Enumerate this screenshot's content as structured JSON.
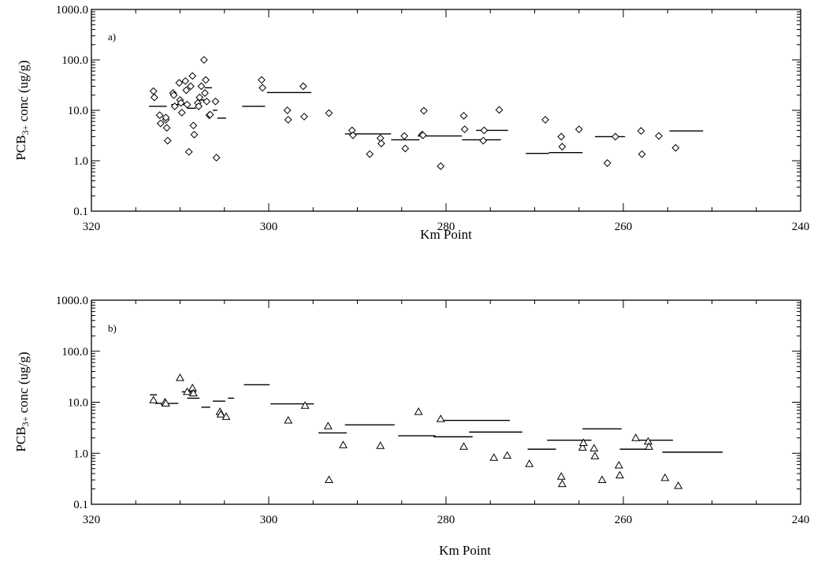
{
  "chart_data": [
    {
      "type": "scatter",
      "panel_label": "a)",
      "xlabel": "Km Point",
      "ylabel_main": "PCB",
      "ylabel_sub": "3+",
      "ylabel_rest": " conc (ug/g)",
      "x_range": [
        320,
        240
      ],
      "y_range": [
        0.1,
        1000
      ],
      "y_scale": "log",
      "marker": "diamond",
      "x_ticks": [
        320,
        300,
        280,
        260,
        240
      ],
      "x_tick_labels": [
        "320",
        "300",
        "280",
        "260",
        "240"
      ],
      "y_ticks": [
        0.1,
        1,
        10,
        100,
        1000
      ],
      "y_tick_labels": [
        "0.1",
        "1.0",
        "10.0",
        "100.0",
        "1000.0"
      ],
      "points": [
        [
          313.0,
          24
        ],
        [
          312.9,
          18
        ],
        [
          312.3,
          8
        ],
        [
          312.2,
          5.5
        ],
        [
          311.6,
          6.5
        ],
        [
          311.5,
          4.5
        ],
        [
          311.4,
          2.5
        ],
        [
          311.6,
          7.2
        ],
        [
          310.8,
          22
        ],
        [
          310.7,
          20
        ],
        [
          310.6,
          12
        ],
        [
          310.1,
          35
        ],
        [
          310.0,
          16
        ],
        [
          309.9,
          14
        ],
        [
          309.8,
          9
        ],
        [
          309.4,
          38
        ],
        [
          309.3,
          25
        ],
        [
          309.2,
          13
        ],
        [
          309.0,
          1.5
        ],
        [
          308.8,
          30
        ],
        [
          308.6,
          48
        ],
        [
          308.5,
          5
        ],
        [
          308.4,
          3.3
        ],
        [
          308.0,
          14
        ],
        [
          307.9,
          12
        ],
        [
          307.8,
          18
        ],
        [
          307.6,
          30
        ],
        [
          307.3,
          100
        ],
        [
          307.1,
          40
        ],
        [
          307.0,
          15
        ],
        [
          307.2,
          22
        ],
        [
          306.7,
          8
        ],
        [
          306.6,
          8.2
        ],
        [
          306.0,
          15
        ],
        [
          305.9,
          1.15
        ],
        [
          300.8,
          40
        ],
        [
          300.7,
          28
        ],
        [
          297.9,
          10
        ],
        [
          297.8,
          6.5
        ],
        [
          296.1,
          30
        ],
        [
          296.0,
          7.5
        ],
        [
          293.2,
          8.8
        ],
        [
          290.6,
          4
        ],
        [
          290.5,
          3.2
        ],
        [
          288.6,
          1.35
        ],
        [
          287.4,
          2.8
        ],
        [
          287.3,
          2.2
        ],
        [
          284.7,
          3.1
        ],
        [
          284.6,
          1.75
        ],
        [
          282.7,
          3.3
        ],
        [
          282.6,
          3.2
        ],
        [
          282.5,
          9.8
        ],
        [
          280.6,
          0.78
        ],
        [
          278.0,
          7.8
        ],
        [
          277.9,
          4.2
        ],
        [
          275.7,
          4
        ],
        [
          275.8,
          2.5
        ],
        [
          274.0,
          10.2
        ],
        [
          268.8,
          6.5
        ],
        [
          267.0,
          3
        ],
        [
          266.9,
          1.9
        ],
        [
          265.0,
          4.2
        ],
        [
          261.8,
          0.9
        ],
        [
          260.9,
          3
        ],
        [
          258.0,
          3.9
        ],
        [
          257.9,
          1.35
        ],
        [
          256.0,
          3.1
        ],
        [
          254.1,
          1.8
        ]
      ],
      "segments": [
        [
          313.5,
          311.5,
          12
        ],
        [
          311.0,
          309.5,
          13
        ],
        [
          309.2,
          308.2,
          11
        ],
        [
          308.0,
          307.2,
          16
        ],
        [
          307.2,
          306.4,
          28
        ],
        [
          306.3,
          305.8,
          10
        ],
        [
          305.8,
          304.8,
          7
        ],
        [
          303.0,
          300.4,
          12
        ],
        [
          300.2,
          295.2,
          22.5
        ],
        [
          291.4,
          286.2,
          3.4
        ],
        [
          286.2,
          283.0,
          2.6
        ],
        [
          283.2,
          278.2,
          3.1
        ],
        [
          278.2,
          273.8,
          2.6
        ],
        [
          276.6,
          273.0,
          4
        ],
        [
          271.0,
          268.4,
          1.4
        ],
        [
          268.4,
          264.6,
          1.45
        ],
        [
          263.2,
          259.8,
          3
        ],
        [
          254.8,
          251.0,
          3.9
        ]
      ]
    },
    {
      "type": "scatter",
      "panel_label": "b)",
      "xlabel": "Km Point",
      "ylabel_main": "PCB",
      "ylabel_sub": "3+",
      "ylabel_rest": " conc (ug/g)",
      "x_range": [
        320,
        240
      ],
      "y_range": [
        0.1,
        1000
      ],
      "y_scale": "log",
      "marker": "triangle",
      "x_ticks": [
        320,
        300,
        280,
        260,
        240
      ],
      "x_tick_labels": [
        "320",
        "300",
        "280",
        "260",
        "240"
      ],
      "y_ticks": [
        0.1,
        1,
        10,
        100,
        1000
      ],
      "y_tick_labels": [
        "0.1",
        "1.0",
        "10.0",
        "100.0",
        "1000.0"
      ],
      "points": [
        [
          313.0,
          11
        ],
        [
          311.7,
          10
        ],
        [
          311.6,
          9.5
        ],
        [
          310.0,
          30
        ],
        [
          309.2,
          16
        ],
        [
          308.6,
          19
        ],
        [
          308.5,
          15
        ],
        [
          305.5,
          6.5
        ],
        [
          305.4,
          5.8
        ],
        [
          304.8,
          5.2
        ],
        [
          297.8,
          4.4
        ],
        [
          295.9,
          8.6
        ],
        [
          293.3,
          3.4
        ],
        [
          293.2,
          0.3
        ],
        [
          291.6,
          1.45
        ],
        [
          287.4,
          1.4
        ],
        [
          283.1,
          6.5
        ],
        [
          280.6,
          4.7
        ],
        [
          278.0,
          1.35
        ],
        [
          274.6,
          0.82
        ],
        [
          273.1,
          0.9
        ],
        [
          270.6,
          0.62
        ],
        [
          267.0,
          0.35
        ],
        [
          266.9,
          0.25
        ],
        [
          264.6,
          1.3
        ],
        [
          264.5,
          1.6
        ],
        [
          263.3,
          1.25
        ],
        [
          263.2,
          0.88
        ],
        [
          262.4,
          0.3
        ],
        [
          260.5,
          0.58
        ],
        [
          260.4,
          0.37
        ],
        [
          258.6,
          2
        ],
        [
          257.2,
          1.7
        ],
        [
          257.1,
          1.35
        ],
        [
          255.3,
          0.33
        ],
        [
          253.8,
          0.23
        ]
      ],
      "segments": [
        [
          313.4,
          312.6,
          14
        ],
        [
          312.8,
          310.2,
          9.5
        ],
        [
          309.8,
          308.2,
          16
        ],
        [
          309.2,
          307.8,
          12
        ],
        [
          307.6,
          306.6,
          8
        ],
        [
          306.3,
          304.9,
          10.5
        ],
        [
          304.6,
          303.9,
          12
        ],
        [
          302.8,
          299.9,
          22
        ],
        [
          299.8,
          294.9,
          9.3
        ],
        [
          294.4,
          291.2,
          2.5
        ],
        [
          291.4,
          285.8,
          3.6
        ],
        [
          285.4,
          281.2,
          2.2
        ],
        [
          281.4,
          277.0,
          2.1
        ],
        [
          280.8,
          272.8,
          4.4
        ],
        [
          277.4,
          271.4,
          2.6
        ],
        [
          270.8,
          267.6,
          1.2
        ],
        [
          268.6,
          263.6,
          1.8
        ],
        [
          264.6,
          260.2,
          3
        ],
        [
          260.4,
          257.0,
          1.2
        ],
        [
          258.8,
          254.4,
          1.8
        ],
        [
          255.6,
          248.8,
          1.05
        ]
      ]
    }
  ]
}
